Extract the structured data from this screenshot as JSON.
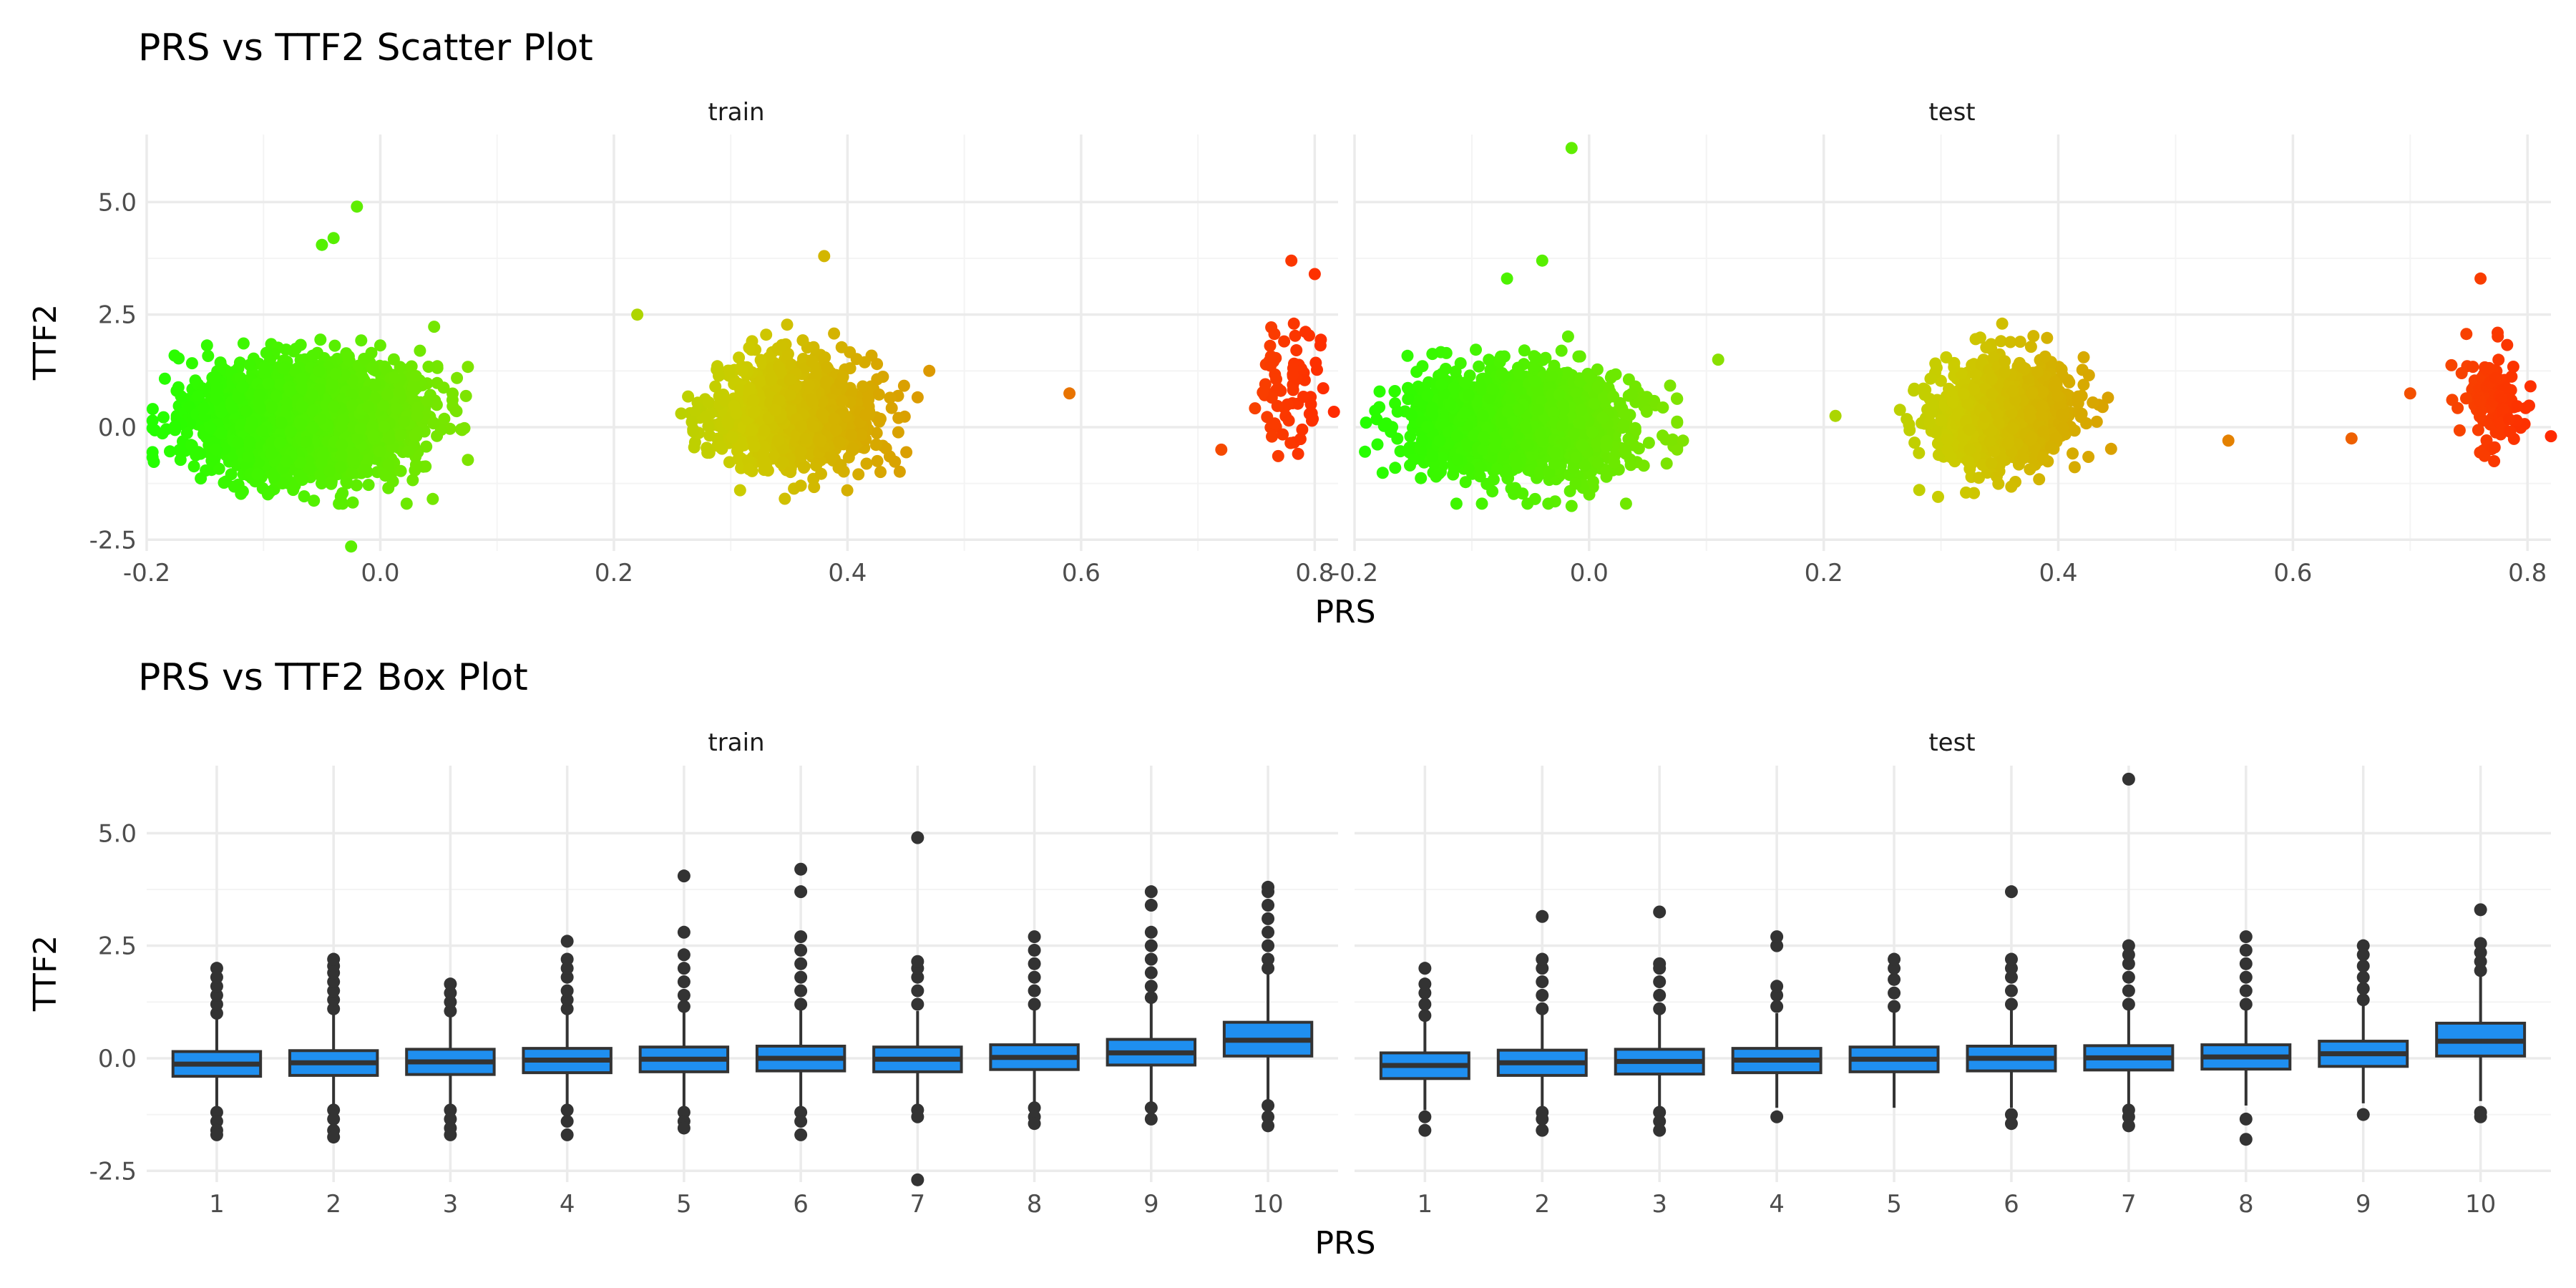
{
  "chart_data": [
    {
      "type": "scatter",
      "title": "PRS vs TTF2 Scatter Plot",
      "xlabel": "PRS",
      "ylabel": "TTF2",
      "facets": [
        "train",
        "test"
      ],
      "xlim": [
        -0.2,
        0.82
      ],
      "ylim": [
        -2.75,
        6.5
      ],
      "x_ticks": [
        -0.2,
        0.0,
        0.2,
        0.4,
        0.6,
        0.8
      ],
      "x_tick_labels": [
        "-0.2",
        "0.0",
        "0.2",
        "0.4",
        "0.6",
        "0.8"
      ],
      "y_ticks": [
        -2.5,
        0.0,
        2.5,
        5.0
      ],
      "y_tick_labels": [
        "-2.5",
        "0.0",
        "2.5",
        "5.0"
      ],
      "grid": true,
      "color_scale": {
        "low": "#22ff00",
        "mid": "#cccc00",
        "high": "#ff2a00"
      },
      "clusters": {
        "train": [
          {
            "x_center": -0.06,
            "x_spread": 0.045,
            "y_center": 0.2,
            "y_spread": 0.6,
            "count": 2600
          },
          {
            "x_center": 0.355,
            "x_spread": 0.035,
            "y_center": 0.3,
            "y_spread": 0.6,
            "count": 1100
          },
          {
            "x_center": 0.775,
            "x_spread": 0.015,
            "y_center": 0.9,
            "y_spread": 0.7,
            "count": 70
          }
        ],
        "test": [
          {
            "x_center": -0.06,
            "x_spread": 0.045,
            "y_center": 0.1,
            "y_spread": 0.55,
            "count": 1900
          },
          {
            "x_center": 0.355,
            "x_spread": 0.03,
            "y_center": 0.3,
            "y_spread": 0.6,
            "count": 900
          },
          {
            "x_center": 0.77,
            "x_spread": 0.015,
            "y_center": 0.6,
            "y_spread": 0.55,
            "count": 120
          }
        ]
      },
      "notable_points": {
        "train": [
          {
            "x": -0.02,
            "y": 4.9
          },
          {
            "x": -0.04,
            "y": 4.2
          },
          {
            "x": -0.05,
            "y": 4.05
          },
          {
            "x": -0.025,
            "y": -2.65
          },
          {
            "x": 0.59,
            "y": 0.75
          },
          {
            "x": 0.38,
            "y": 3.8
          },
          {
            "x": 0.47,
            "y": 1.25
          },
          {
            "x": 0.22,
            "y": 2.5
          },
          {
            "x": 0.78,
            "y": 3.7
          },
          {
            "x": 0.8,
            "y": 3.4
          },
          {
            "x": 0.72,
            "y": -0.5
          }
        ],
        "test": [
          {
            "x": -0.015,
            "y": 6.2
          },
          {
            "x": -0.04,
            "y": 3.7
          },
          {
            "x": -0.07,
            "y": 3.3
          },
          {
            "x": -0.015,
            "y": -1.75
          },
          {
            "x": 0.11,
            "y": 1.5
          },
          {
            "x": 0.08,
            "y": -0.3
          },
          {
            "x": 0.545,
            "y": -0.3
          },
          {
            "x": 0.65,
            "y": -0.25
          },
          {
            "x": 0.7,
            "y": 0.75
          },
          {
            "x": 0.76,
            "y": 3.3
          },
          {
            "x": 0.82,
            "y": -0.2
          },
          {
            "x": 0.21,
            "y": 0.25
          }
        ]
      }
    },
    {
      "type": "box",
      "title": "PRS vs TTF2 Box Plot",
      "xlabel": "PRS",
      "ylabel": "TTF2",
      "facets": [
        "train",
        "test"
      ],
      "categories": [
        "1",
        "2",
        "3",
        "4",
        "5",
        "6",
        "7",
        "8",
        "9",
        "10"
      ],
      "ylim": [
        -2.75,
        6.5
      ],
      "y_ticks": [
        -2.5,
        0.0,
        2.5,
        5.0
      ],
      "y_tick_labels": [
        "-2.5",
        "0.0",
        "2.5",
        "5.0"
      ],
      "grid": true,
      "box_color": "#1f8ff0",
      "line_color": "#333333",
      "series": [
        {
          "name": "train",
          "boxes": [
            {
              "q1": -0.4,
              "median": -0.13,
              "q3": 0.15,
              "whisker_low": -1.15,
              "whisker_high": 0.95,
              "outliers_high": [
                1.0,
                1.2,
                1.4,
                1.6,
                1.8,
                2.0
              ],
              "outliers_low": [
                -1.2,
                -1.4,
                -1.6,
                -1.7
              ]
            },
            {
              "q1": -0.38,
              "median": -0.1,
              "q3": 0.17,
              "whisker_low": -1.1,
              "whisker_high": 1.0,
              "outliers_high": [
                1.1,
                1.3,
                1.5,
                1.7,
                1.9,
                2.05,
                2.2
              ],
              "outliers_low": [
                -1.15,
                -1.35,
                -1.6,
                -1.75
              ]
            },
            {
              "q1": -0.36,
              "median": -0.08,
              "q3": 0.2,
              "whisker_low": -1.1,
              "whisker_high": 1.0,
              "outliers_high": [
                1.05,
                1.25,
                1.45,
                1.65
              ],
              "outliers_low": [
                -1.15,
                -1.35,
                -1.55,
                -1.7
              ]
            },
            {
              "q1": -0.32,
              "median": -0.04,
              "q3": 0.22,
              "whisker_low": -1.1,
              "whisker_high": 1.0,
              "outliers_high": [
                1.1,
                1.3,
                1.5,
                1.8,
                2.0,
                2.2,
                2.6
              ],
              "outliers_low": [
                -1.15,
                -1.4,
                -1.7
              ]
            },
            {
              "q1": -0.3,
              "median": -0.02,
              "q3": 0.25,
              "whisker_low": -1.1,
              "whisker_high": 1.05,
              "outliers_high": [
                1.15,
                1.4,
                1.7,
                2.0,
                2.3,
                2.8,
                4.05
              ],
              "outliers_low": [
                -1.2,
                -1.4,
                -1.55
              ]
            },
            {
              "q1": -0.28,
              "median": 0.0,
              "q3": 0.27,
              "whisker_low": -1.1,
              "whisker_high": 1.1,
              "outliers_high": [
                1.2,
                1.5,
                1.8,
                2.1,
                2.4,
                2.7,
                3.7,
                4.2
              ],
              "outliers_low": [
                -1.2,
                -1.4,
                -1.7
              ]
            },
            {
              "q1": -0.3,
              "median": -0.02,
              "q3": 0.25,
              "whisker_low": -1.1,
              "whisker_high": 1.05,
              "outliers_high": [
                1.2,
                1.5,
                1.8,
                2.0,
                2.15,
                4.9
              ],
              "outliers_low": [
                -1.15,
                -1.3,
                -2.7
              ]
            },
            {
              "q1": -0.25,
              "median": 0.02,
              "q3": 0.3,
              "whisker_low": -1.05,
              "whisker_high": 1.1,
              "outliers_high": [
                1.2,
                1.5,
                1.8,
                2.1,
                2.4,
                2.7
              ],
              "outliers_low": [
                -1.1,
                -1.3,
                -1.45
              ]
            },
            {
              "q1": -0.15,
              "median": 0.12,
              "q3": 0.42,
              "whisker_low": -1.0,
              "whisker_high": 1.25,
              "outliers_high": [
                1.35,
                1.6,
                1.9,
                2.2,
                2.5,
                2.8,
                3.4,
                3.7
              ],
              "outliers_low": [
                -1.1,
                -1.35
              ]
            },
            {
              "q1": 0.05,
              "median": 0.4,
              "q3": 0.8,
              "whisker_low": -0.95,
              "whisker_high": 1.9,
              "outliers_high": [
                2.0,
                2.2,
                2.5,
                2.8,
                3.1,
                3.4,
                3.7,
                3.8
              ],
              "outliers_low": [
                -1.05,
                -1.3,
                -1.5
              ]
            }
          ]
        },
        {
          "name": "test",
          "boxes": [
            {
              "q1": -0.45,
              "median": -0.16,
              "q3": 0.12,
              "whisker_low": -1.15,
              "whisker_high": 0.85,
              "outliers_high": [
                0.95,
                1.2,
                1.45,
                1.65,
                2.0
              ],
              "outliers_low": [
                -1.3,
                -1.6
              ]
            },
            {
              "q1": -0.38,
              "median": -0.1,
              "q3": 0.18,
              "whisker_low": -1.1,
              "whisker_high": 1.0,
              "outliers_high": [
                1.1,
                1.4,
                1.7,
                2.0,
                2.2,
                3.15
              ],
              "outliers_low": [
                -1.2,
                -1.35,
                -1.6
              ]
            },
            {
              "q1": -0.35,
              "median": -0.07,
              "q3": 0.2,
              "whisker_low": -1.1,
              "whisker_high": 1.0,
              "outliers_high": [
                1.1,
                1.4,
                1.7,
                2.0,
                2.1,
                3.25
              ],
              "outliers_low": [
                -1.2,
                -1.4,
                -1.6
              ]
            },
            {
              "q1": -0.32,
              "median": -0.04,
              "q3": 0.22,
              "whisker_low": -1.1,
              "whisker_high": 1.0,
              "outliers_high": [
                1.15,
                1.4,
                1.6,
                2.5,
                2.7
              ],
              "outliers_low": [
                -1.3
              ]
            },
            {
              "q1": -0.3,
              "median": -0.02,
              "q3": 0.25,
              "whisker_low": -1.1,
              "whisker_high": 1.05,
              "outliers_high": [
                1.15,
                1.45,
                1.75,
                2.0,
                2.2
              ],
              "outliers_low": []
            },
            {
              "q1": -0.28,
              "median": 0.0,
              "q3": 0.27,
              "whisker_low": -1.1,
              "whisker_high": 1.1,
              "outliers_high": [
                1.2,
                1.5,
                1.8,
                2.0,
                2.2,
                3.7
              ],
              "outliers_low": [
                -1.25,
                -1.45
              ]
            },
            {
              "q1": -0.26,
              "median": 0.01,
              "q3": 0.28,
              "whisker_low": -1.05,
              "whisker_high": 1.1,
              "outliers_high": [
                1.2,
                1.5,
                1.8,
                2.1,
                2.3,
                2.5,
                6.2
              ],
              "outliers_low": [
                -1.15,
                -1.3,
                -1.5
              ]
            },
            {
              "q1": -0.24,
              "median": 0.03,
              "q3": 0.3,
              "whisker_low": -1.05,
              "whisker_high": 1.1,
              "outliers_high": [
                1.2,
                1.5,
                1.8,
                2.1,
                2.4,
                2.7
              ],
              "outliers_low": [
                -1.35,
                -1.8
              ]
            },
            {
              "q1": -0.18,
              "median": 0.1,
              "q3": 0.38,
              "whisker_low": -1.0,
              "whisker_high": 1.2,
              "outliers_high": [
                1.3,
                1.55,
                1.8,
                2.05,
                2.3,
                2.5
              ],
              "outliers_low": [
                -1.25
              ]
            },
            {
              "q1": 0.05,
              "median": 0.38,
              "q3": 0.78,
              "whisker_low": -0.95,
              "whisker_high": 1.85,
              "outliers_high": [
                1.95,
                2.15,
                2.35,
                2.55,
                3.3
              ],
              "outliers_low": [
                -1.2,
                -1.3
              ]
            }
          ]
        }
      ]
    }
  ]
}
